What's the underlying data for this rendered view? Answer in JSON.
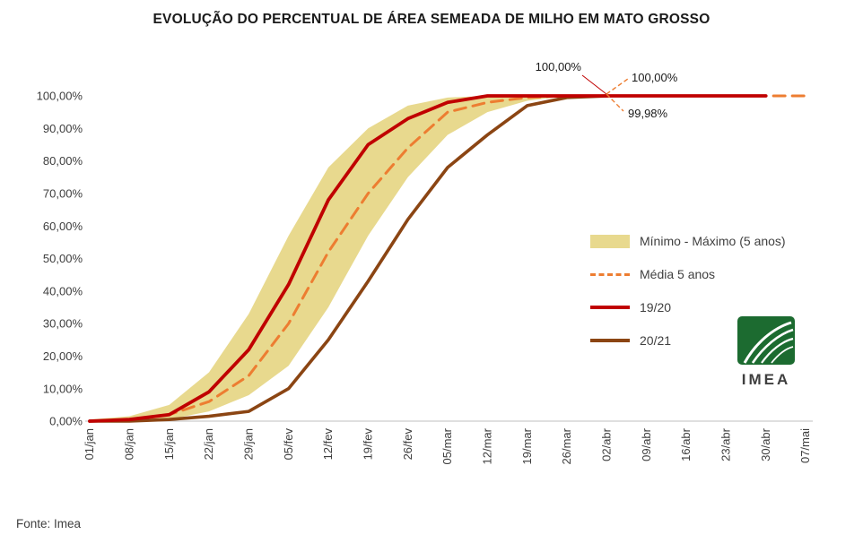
{
  "colors": {
    "band": "#e8d98e",
    "media": "#ed7d31",
    "y1920": "#c00000",
    "y2021": "#8B4513",
    "axis": "#bfbfbf",
    "text": "#3d3d3d",
    "logo_green": "#1c6b30"
  },
  "chart_data": {
    "type": "line",
    "title": "EVOLUÇÃO DO PERCENTUAL DE ÁREA SEMEADA DE MILHO EM MATO GROSSO",
    "xlabel": "",
    "ylabel": "",
    "ylim": [
      0,
      100
    ],
    "grid": false,
    "legend_position": "right",
    "categories": [
      "01/jan",
      "08/jan",
      "15/jan",
      "22/jan",
      "29/jan",
      "05/fev",
      "12/fev",
      "19/fev",
      "26/fev",
      "05/mar",
      "12/mar",
      "19/mar",
      "26/mar",
      "02/abr",
      "09/abr",
      "16/abr",
      "23/abr",
      "30/abr",
      "07/mai"
    ],
    "ytick_labels": [
      "0,00%",
      "10,00%",
      "20,00%",
      "30,00%",
      "40,00%",
      "50,00%",
      "60,00%",
      "70,00%",
      "80,00%",
      "90,00%",
      "100,00%"
    ],
    "series": [
      {
        "name": "Mínimo",
        "values": [
          0,
          0,
          0.5,
          3,
          8,
          17,
          35,
          57,
          75,
          88,
          95,
          98.5,
          100,
          100,
          100,
          100,
          100,
          100,
          100
        ]
      },
      {
        "name": "Máximo",
        "values": [
          0.5,
          1.5,
          5,
          15,
          33,
          57,
          78,
          90,
          97,
          99.5,
          100,
          100,
          100,
          100,
          100,
          100,
          100,
          100,
          100
        ]
      },
      {
        "name": "Média 5 anos",
        "values": [
          0,
          0.5,
          2,
          6,
          14,
          30,
          52,
          70,
          84,
          95,
          98,
          99.5,
          100,
          100,
          100,
          100,
          100,
          100,
          100
        ]
      },
      {
        "name": "19/20",
        "values": [
          0,
          0.5,
          2,
          9,
          22,
          42,
          68,
          85,
          93,
          98,
          100,
          100,
          100,
          100,
          100,
          100,
          100,
          100,
          null
        ]
      },
      {
        "name": "20/21",
        "values": [
          0,
          0,
          0.5,
          1.5,
          3,
          10,
          25,
          43,
          62,
          78,
          88,
          97,
          99.5,
          99.98,
          null,
          null,
          null,
          null,
          null
        ]
      }
    ]
  },
  "legend": [
    {
      "label": "Mínimo - Máximo (5 anos)",
      "type": "band",
      "color": "#e8d98e"
    },
    {
      "label": "Média 5 anos",
      "type": "dashed",
      "color": "#ed7d31"
    },
    {
      "label": "19/20",
      "type": "solid",
      "color": "#c00000"
    },
    {
      "label": "20/21",
      "type": "solid",
      "color": "#8B4513"
    }
  ],
  "annotations": {
    "left_label": "100,00%",
    "right_top_label": "100,00%",
    "right_bottom_label": "99,98%"
  },
  "logo_text": "IMEA",
  "source_note": "Fonte: Imea"
}
